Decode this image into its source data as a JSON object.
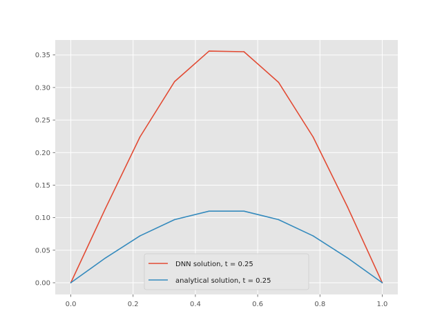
{
  "chart_data": {
    "type": "line",
    "title": "",
    "xlabel": "",
    "ylabel": "",
    "xlim": [
      -0.05,
      1.05
    ],
    "ylim": [
      -0.018,
      0.373
    ],
    "xticks": [
      0.0,
      0.2,
      0.4,
      0.6,
      0.8,
      1.0
    ],
    "xtick_labels": [
      "0.0",
      "0.2",
      "0.4",
      "0.6",
      "0.8",
      "1.0"
    ],
    "yticks": [
      0.0,
      0.05,
      0.1,
      0.15,
      0.2,
      0.25,
      0.3,
      0.35
    ],
    "ytick_labels": [
      "0.00",
      "0.05",
      "0.10",
      "0.15",
      "0.20",
      "0.25",
      "0.30",
      "0.35"
    ],
    "grid": true,
    "legend_position": "lower center",
    "x": [
      0.0,
      0.111,
      0.222,
      0.333,
      0.444,
      0.556,
      0.667,
      0.778,
      0.889,
      1.0
    ],
    "series": [
      {
        "name": "DNN solution, t = 0.25",
        "color": "#E24A33",
        "values": [
          0.0,
          0.114,
          0.224,
          0.309,
          0.356,
          0.355,
          0.308,
          0.224,
          0.116,
          0.0
        ]
      },
      {
        "name": "analytical solution, t = 0.25",
        "color": "#348ABD",
        "values": [
          0.0,
          0.038,
          0.072,
          0.097,
          0.11,
          0.11,
          0.097,
          0.072,
          0.038,
          0.0
        ]
      }
    ]
  }
}
